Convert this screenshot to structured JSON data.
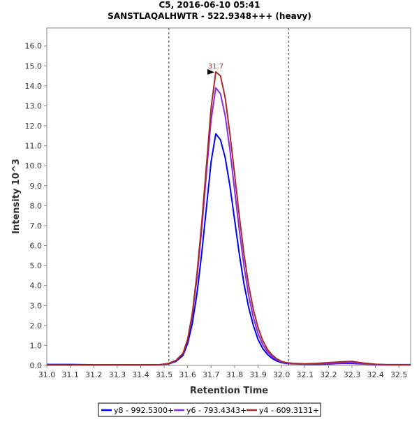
{
  "chart_data": {
    "type": "line",
    "title": "C5, 2016-06-10 05:41",
    "subtitle": "SANSTLAQALHWTR - 522.9348+++ (heavy)",
    "xlabel": "Retention Time",
    "ylabel": "Intensity 10^3",
    "xlim": [
      31.0,
      32.55
    ],
    "ylim": [
      0,
      16.9
    ],
    "x_ticks": [
      31.0,
      31.1,
      31.2,
      31.3,
      31.4,
      31.5,
      31.6,
      31.7,
      31.8,
      31.9,
      32.0,
      32.1,
      32.2,
      32.3,
      32.4,
      32.5
    ],
    "x_tick_labels": [
      "31.0",
      "31.1",
      "31.2",
      "31.3",
      "31.4",
      "31.5",
      "31.6",
      "31.7",
      "31.8",
      "31.9",
      "32.0",
      "32.1",
      "32.2",
      "32.3",
      "32.4",
      "32.5"
    ],
    "y_ticks": [
      0,
      1,
      2,
      3,
      4,
      5,
      6,
      7,
      8,
      9,
      10,
      11,
      12,
      13,
      14,
      15,
      16
    ],
    "y_tick_labels": [
      "0.0",
      "1.0",
      "2.0",
      "3.0",
      "4.0",
      "5.0",
      "6.0",
      "7.0",
      "8.0",
      "9.0",
      "10.0",
      "11.0",
      "12.0",
      "13.0",
      "14.0",
      "15.0",
      "16.0"
    ],
    "integration_boundaries": [
      31.52,
      32.03
    ],
    "peak_annotation": {
      "label": "31.7",
      "x": 31.72,
      "y": 14.7,
      "color": "#a52a2a"
    },
    "legend_position": "bottom-center",
    "series": [
      {
        "name": "y8 - 992.5300+",
        "color": "#0000ff",
        "x": [
          31.0,
          31.1,
          31.2,
          31.3,
          31.4,
          31.48,
          31.52,
          31.55,
          31.58,
          31.6,
          31.62,
          31.64,
          31.66,
          31.68,
          31.7,
          31.72,
          31.74,
          31.76,
          31.78,
          31.8,
          31.82,
          31.84,
          31.86,
          31.88,
          31.9,
          31.92,
          31.94,
          31.96,
          31.98,
          32.0,
          32.02,
          32.05,
          32.1,
          32.15,
          32.2,
          32.25,
          32.3,
          32.35,
          32.4,
          32.45,
          32.55
        ],
        "y": [
          0.05,
          0.05,
          0.03,
          0.03,
          0.03,
          0.04,
          0.08,
          0.2,
          0.5,
          1.1,
          2.1,
          3.6,
          5.6,
          7.9,
          10.2,
          11.6,
          11.3,
          10.4,
          9.0,
          7.3,
          5.6,
          4.1,
          2.9,
          2.0,
          1.3,
          0.85,
          0.55,
          0.35,
          0.22,
          0.14,
          0.1,
          0.08,
          0.06,
          0.06,
          0.07,
          0.1,
          0.1,
          0.07,
          0.05,
          0.04,
          0.04
        ]
      },
      {
        "name": "y6 - 793.4343+",
        "color": "#8a2be2",
        "x": [
          31.0,
          31.1,
          31.2,
          31.3,
          31.4,
          31.48,
          31.52,
          31.55,
          31.58,
          31.6,
          31.62,
          31.64,
          31.66,
          31.68,
          31.7,
          31.72,
          31.74,
          31.76,
          31.78,
          31.8,
          31.82,
          31.84,
          31.86,
          31.88,
          31.9,
          31.92,
          31.94,
          31.96,
          31.98,
          32.0,
          32.02,
          32.05,
          32.1,
          32.15,
          32.2,
          32.25,
          32.3,
          32.35,
          32.4,
          32.45,
          32.55
        ],
        "y": [
          0.02,
          0.02,
          0.02,
          0.02,
          0.02,
          0.03,
          0.1,
          0.25,
          0.6,
          1.3,
          2.5,
          4.4,
          6.8,
          9.6,
          12.3,
          13.9,
          13.6,
          12.5,
          10.8,
          8.8,
          6.8,
          5.0,
          3.5,
          2.4,
          1.6,
          1.05,
          0.68,
          0.44,
          0.28,
          0.18,
          0.12,
          0.09,
          0.07,
          0.08,
          0.1,
          0.12,
          0.13,
          0.08,
          0.05,
          0.03,
          0.03
        ]
      },
      {
        "name": "y4 - 609.3131+",
        "color": "#a52a2a",
        "x": [
          31.0,
          31.1,
          31.2,
          31.3,
          31.4,
          31.48,
          31.52,
          31.55,
          31.58,
          31.6,
          31.62,
          31.64,
          31.66,
          31.68,
          31.7,
          31.72,
          31.74,
          31.76,
          31.78,
          31.8,
          31.82,
          31.84,
          31.86,
          31.88,
          31.9,
          31.92,
          31.94,
          31.96,
          31.98,
          32.0,
          32.02,
          32.05,
          32.1,
          32.15,
          32.2,
          32.25,
          32.3,
          32.35,
          32.4,
          32.45,
          32.55
        ],
        "y": [
          0.02,
          0.02,
          0.02,
          0.02,
          0.02,
          0.03,
          0.1,
          0.25,
          0.6,
          1.3,
          2.6,
          4.6,
          7.1,
          10.0,
          12.9,
          14.7,
          14.5,
          13.4,
          11.6,
          9.6,
          7.5,
          5.6,
          4.0,
          2.8,
          1.9,
          1.25,
          0.8,
          0.52,
          0.33,
          0.2,
          0.14,
          0.1,
          0.08,
          0.1,
          0.14,
          0.18,
          0.2,
          0.12,
          0.06,
          0.03,
          0.03
        ]
      }
    ]
  }
}
